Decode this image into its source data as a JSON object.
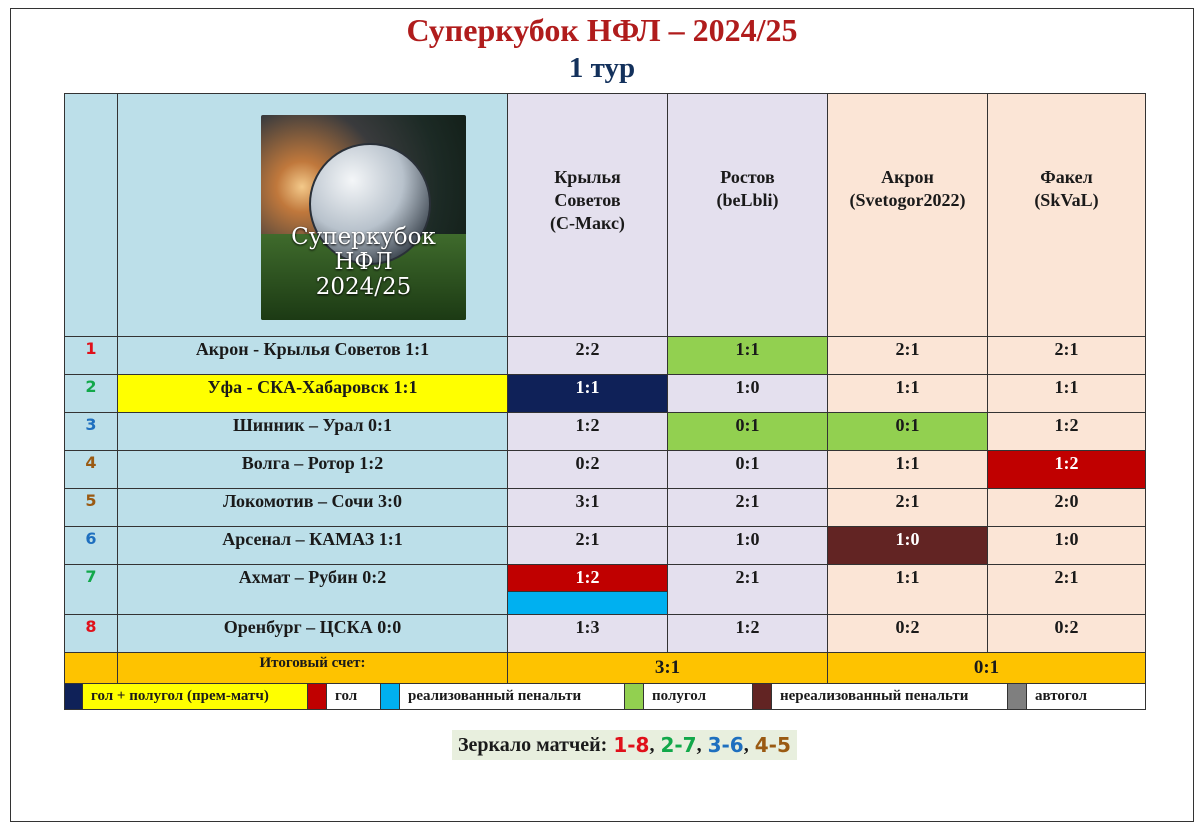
{
  "title": "Суперкубок НФЛ – 2024/25",
  "subtitle": "1 тур",
  "logo": {
    "line1": "Суперкубок",
    "line2": "НФЛ",
    "line3": "2024/25"
  },
  "columns": [
    {
      "label": "Крылья\nСоветов\n(С-Макс)"
    },
    {
      "label": "Ростов\n(beLbli)"
    },
    {
      "label": "Акрон\n(Svetogor2022)"
    },
    {
      "label": "Факел\n(SkVaL)"
    }
  ],
  "rows": [
    {
      "num": "1",
      "num_color": "#e0101a",
      "match": "Акрон - Крылья Советов  1:1",
      "preds": [
        "2:2",
        "1:1",
        "2:1",
        "2:1"
      ]
    },
    {
      "num": "2",
      "num_color": "#12a84a",
      "match": "Уфа - СКА-Хабаровск  1:1",
      "preds": [
        "1:1",
        "1:0",
        "1:1",
        "1:1"
      ]
    },
    {
      "num": "3",
      "num_color": "#1e6fbf",
      "match": "Шинник – Урал  0:1",
      "preds": [
        "1:2",
        "0:1",
        "0:1",
        "1:2"
      ]
    },
    {
      "num": "4",
      "num_color": "#9a5a12",
      "match": "Волга – Ротор  1:2",
      "preds": [
        "0:2",
        "0:1",
        "1:1",
        "1:2"
      ]
    },
    {
      "num": "5",
      "num_color": "#9a5a12",
      "match": "Локомотив – Сочи  3:0",
      "preds": [
        "3:1",
        "2:1",
        "2:1",
        "2:0"
      ]
    },
    {
      "num": "6",
      "num_color": "#1e6fbf",
      "match": "Арсенал – КАМАЗ  1:1",
      "preds": [
        "2:1",
        "1:0",
        "1:0",
        "1:0"
      ]
    },
    {
      "num": "7",
      "num_color": "#12a84a",
      "match": "Ахмат – Рубин  0:2",
      "preds": [
        "1:2",
        "2:1",
        "1:1",
        "2:1"
      ]
    },
    {
      "num": "8",
      "num_color": "#e0101a",
      "match": "Оренбург – ЦСКА  0:0",
      "preds": [
        "1:3",
        "1:2",
        "0:2",
        "0:2"
      ]
    }
  ],
  "total": {
    "label": "Итоговый счет:",
    "score1": "3:1",
    "score2": "0:1"
  },
  "legend": {
    "goal_halfgoal": "гол + полугол  (прем-матч)",
    "goal": "гол",
    "penalty_scored": "реализованный  пенальти",
    "halfgoal": "полугол",
    "penalty_missed": "нереализованный пенальти",
    "own_goal": "автогол"
  },
  "colors": {
    "goal_halfgoal": "#0f2158",
    "goal": "#c00000",
    "penalty_scored": "#00b0f0",
    "halfgoal": "#92d050",
    "penalty_missed": "#622423",
    "own_goal": "#7f7f7f",
    "highlight_yellow": "#ffff00"
  },
  "mirror": {
    "label": "Зеркало матчей:",
    "pairs": [
      {
        "text": "1-8",
        "color": "#e0101a"
      },
      {
        "text": "2-7",
        "color": "#12a84a"
      },
      {
        "text": "3-6",
        "color": "#1e6fbf"
      },
      {
        "text": "4-5",
        "color": "#9a5a12"
      }
    ]
  }
}
